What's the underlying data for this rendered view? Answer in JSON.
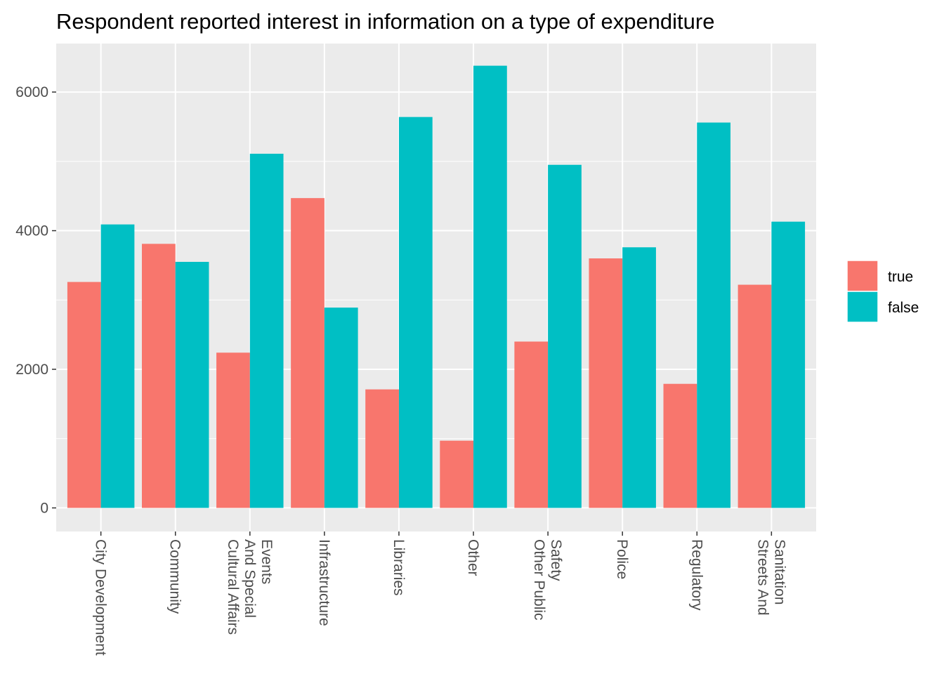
{
  "chart_data": {
    "type": "bar",
    "title": "Respondent reported interest in information on a type of expenditure",
    "xlabel": "",
    "ylabel": "",
    "categories": [
      "City Development",
      "Community",
      "Cultural Affairs And Special Events",
      "Infrastructure",
      "Libraries",
      "Other",
      "Other Public Safety",
      "Police",
      "Regulatory",
      "Streets And Sanitation"
    ],
    "category_lines": [
      [
        "City Development"
      ],
      [
        "Community"
      ],
      [
        "Cultural Affairs",
        "And Special",
        "Events"
      ],
      [
        "Infrastructure"
      ],
      [
        "Libraries"
      ],
      [
        "Other"
      ],
      [
        "Other Public",
        "Safety"
      ],
      [
        "Police"
      ],
      [
        "Regulatory"
      ],
      [
        "Streets And",
        "Sanitation"
      ]
    ],
    "series": [
      {
        "name": "true",
        "color": "#F8766D",
        "values": [
          3260,
          3810,
          2240,
          4470,
          1710,
          970,
          2400,
          3600,
          1790,
          3220
        ]
      },
      {
        "name": "false",
        "color": "#00BFC4",
        "values": [
          4090,
          3550,
          5110,
          2890,
          5640,
          6380,
          4950,
          3760,
          5560,
          4130
        ]
      }
    ],
    "ylim": [
      -340,
      6700
    ],
    "yticks": [
      0,
      2000,
      4000,
      6000
    ],
    "ytick_labels": [
      "0",
      "2000",
      "4000",
      "6000"
    ],
    "grid": true,
    "legend_position": "right",
    "colors": {
      "panel_background": "#EBEBEB",
      "grid_major": "#FFFFFF",
      "axis_text": "#4D4D4D",
      "tick": "#333333"
    }
  }
}
